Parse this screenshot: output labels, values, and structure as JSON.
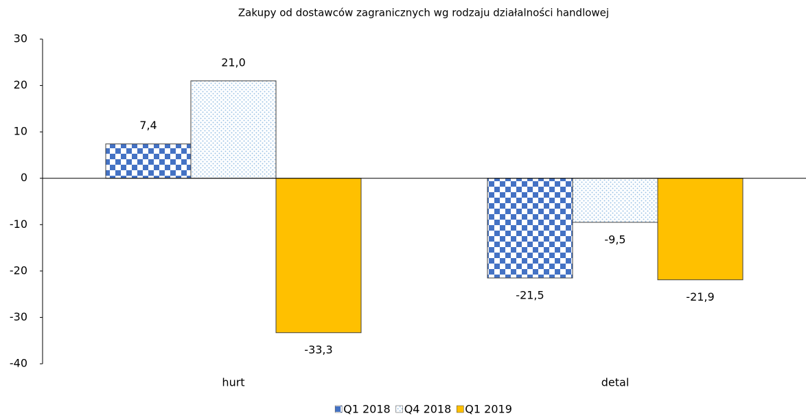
{
  "chart_data": {
    "type": "bar",
    "title": "Zakupy od dostawców zagranicznych wg rodzaju działalności handlowej",
    "categories": [
      "hurt",
      "detal"
    ],
    "series": [
      {
        "name": "Q1 2018",
        "color": "#4472c4",
        "pattern": "checker",
        "values": [
          7.4,
          -21.5
        ],
        "value_labels": [
          "7,4",
          "-21,5"
        ]
      },
      {
        "name": "Q4 2018",
        "color": "#9dc3e6",
        "pattern": "dots",
        "values": [
          21.0,
          -9.5
        ],
        "value_labels": [
          "21,0",
          "-9,5"
        ]
      },
      {
        "name": "Q1 2019",
        "color": "#ffc000",
        "pattern": "solid",
        "values": [
          -33.3,
          -21.9
        ],
        "value_labels": [
          "-33,3",
          "-21,9"
        ]
      }
    ],
    "ylim": [
      -40,
      30
    ],
    "yticks": [
      -40,
      -30,
      -20,
      -10,
      0,
      10,
      20,
      30
    ],
    "grid": false,
    "legend": "bottom"
  }
}
